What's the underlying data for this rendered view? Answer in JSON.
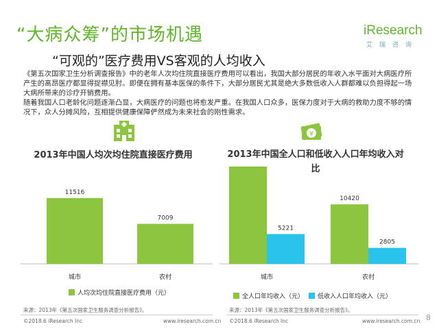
{
  "header": {
    "title": "“大病众筹”的市场机遇",
    "subtitle": "“可观的”医疗费用VS客观的人均收入",
    "logo_text": "iResearch",
    "logo_sub": "艾瑞咨询"
  },
  "body": {
    "paragraph1": "《第五次国家卫生分析调查报告》中的老年人次均住院直接医疗费用可以看出，我国大部分居民的年收入水平面对大病医疗所产生的高昂医疗都显得捉襟见肘。即便在拥有基本医保的条件下，大部分居民尤其是绝大多数低收入人群都难以负担得起一场大病所带来的诊疗开销费用。",
    "paragraph2": "随着我国人口老龄化问题逐渐凸显，大病医疗的问题也将愈发严重。在我国人口众多，医保力度对于大病的救助力度不够的情况下，众人分摊风险，互相提供健康保障俨然成为未来社会的刚性需求。"
  },
  "colors": {
    "green": "#8cc63f",
    "cyan": "#29c3ec",
    "title_green": "#5fb62a"
  },
  "icons": {
    "left": "hospital-icon",
    "right": "money-icon"
  },
  "chart_data": [
    {
      "type": "bar",
      "title": "2013年中国人均次均住院直接医疗费用",
      "categories": [
        "城市",
        "农村"
      ],
      "series": [
        {
          "name": "人均次均住院直接医疗费用（元）",
          "values": [
            11516,
            7009
          ],
          "color": "#8cc63f"
        }
      ],
      "ylim": [
        0,
        18000
      ],
      "legend_position": "bottom",
      "source": "来源：2013年《第五次国家卫生服务调查分析报告》。"
    },
    {
      "type": "bar",
      "title": "2013年中国全人口和低收入人口年均收入对比",
      "categories": [
        "城市",
        "农村"
      ],
      "series": [
        {
          "name": "全人口年均收入（元）",
          "values": [
            17046,
            10420
          ],
          "color": "#8cc63f"
        },
        {
          "name": "低收入人口年均收入（元）",
          "values": [
            5221,
            2805
          ],
          "color": "#29c3ec"
        }
      ],
      "ylim": [
        0,
        18000
      ],
      "legend_position": "bottom",
      "source": "来源：2013年《第五次国家卫生服务调查分析报告》。"
    }
  ],
  "footer": {
    "left_copyright": "©2018.6 iResearch Inc",
    "left_url": "www.iresearch.com.cn",
    "right_copyright": "©2018.6 iResearch Inc",
    "right_url": "www.iresearch.com.cn",
    "page": "8"
  }
}
